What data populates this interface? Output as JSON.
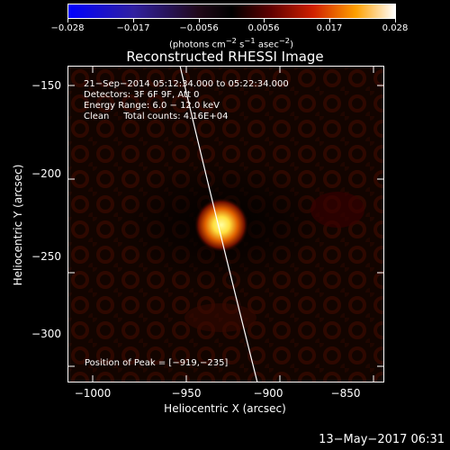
{
  "colorbar": {
    "ticks": [
      "−0.028",
      "−0.017",
      "−0.0056",
      "0.0056",
      "0.017",
      "0.028"
    ],
    "unit_html": "(photons cm<sup>−2</sup> s<sup>−1</sup> asec<sup>−2</sup>)"
  },
  "title": "Reconstructed RHESSI Image",
  "info": {
    "line1": "21−Sep−2014 05:12:34.000 to 05:22:34.000",
    "line2": "Detectors: 3F 6F 9F, Att 0",
    "line3": "Energy Range: 6.0 − 12.0 keV",
    "line4": "Clean     Total counts: 4.16E+04"
  },
  "peak": "Position of Peak = [−919,−235]",
  "axes": {
    "xlabel": "Heliocentric X (arcsec)",
    "ylabel": "Heliocentric Y (arcsec)",
    "xticks": [
      "−1000",
      "−950",
      "−900",
      "−850"
    ],
    "yticks": [
      "−150",
      "−200",
      "−250",
      "−300"
    ]
  },
  "timestamp": "13−May−2017 06:31",
  "colors": {
    "source": "#ffe860",
    "limb": "#ffffff"
  }
}
